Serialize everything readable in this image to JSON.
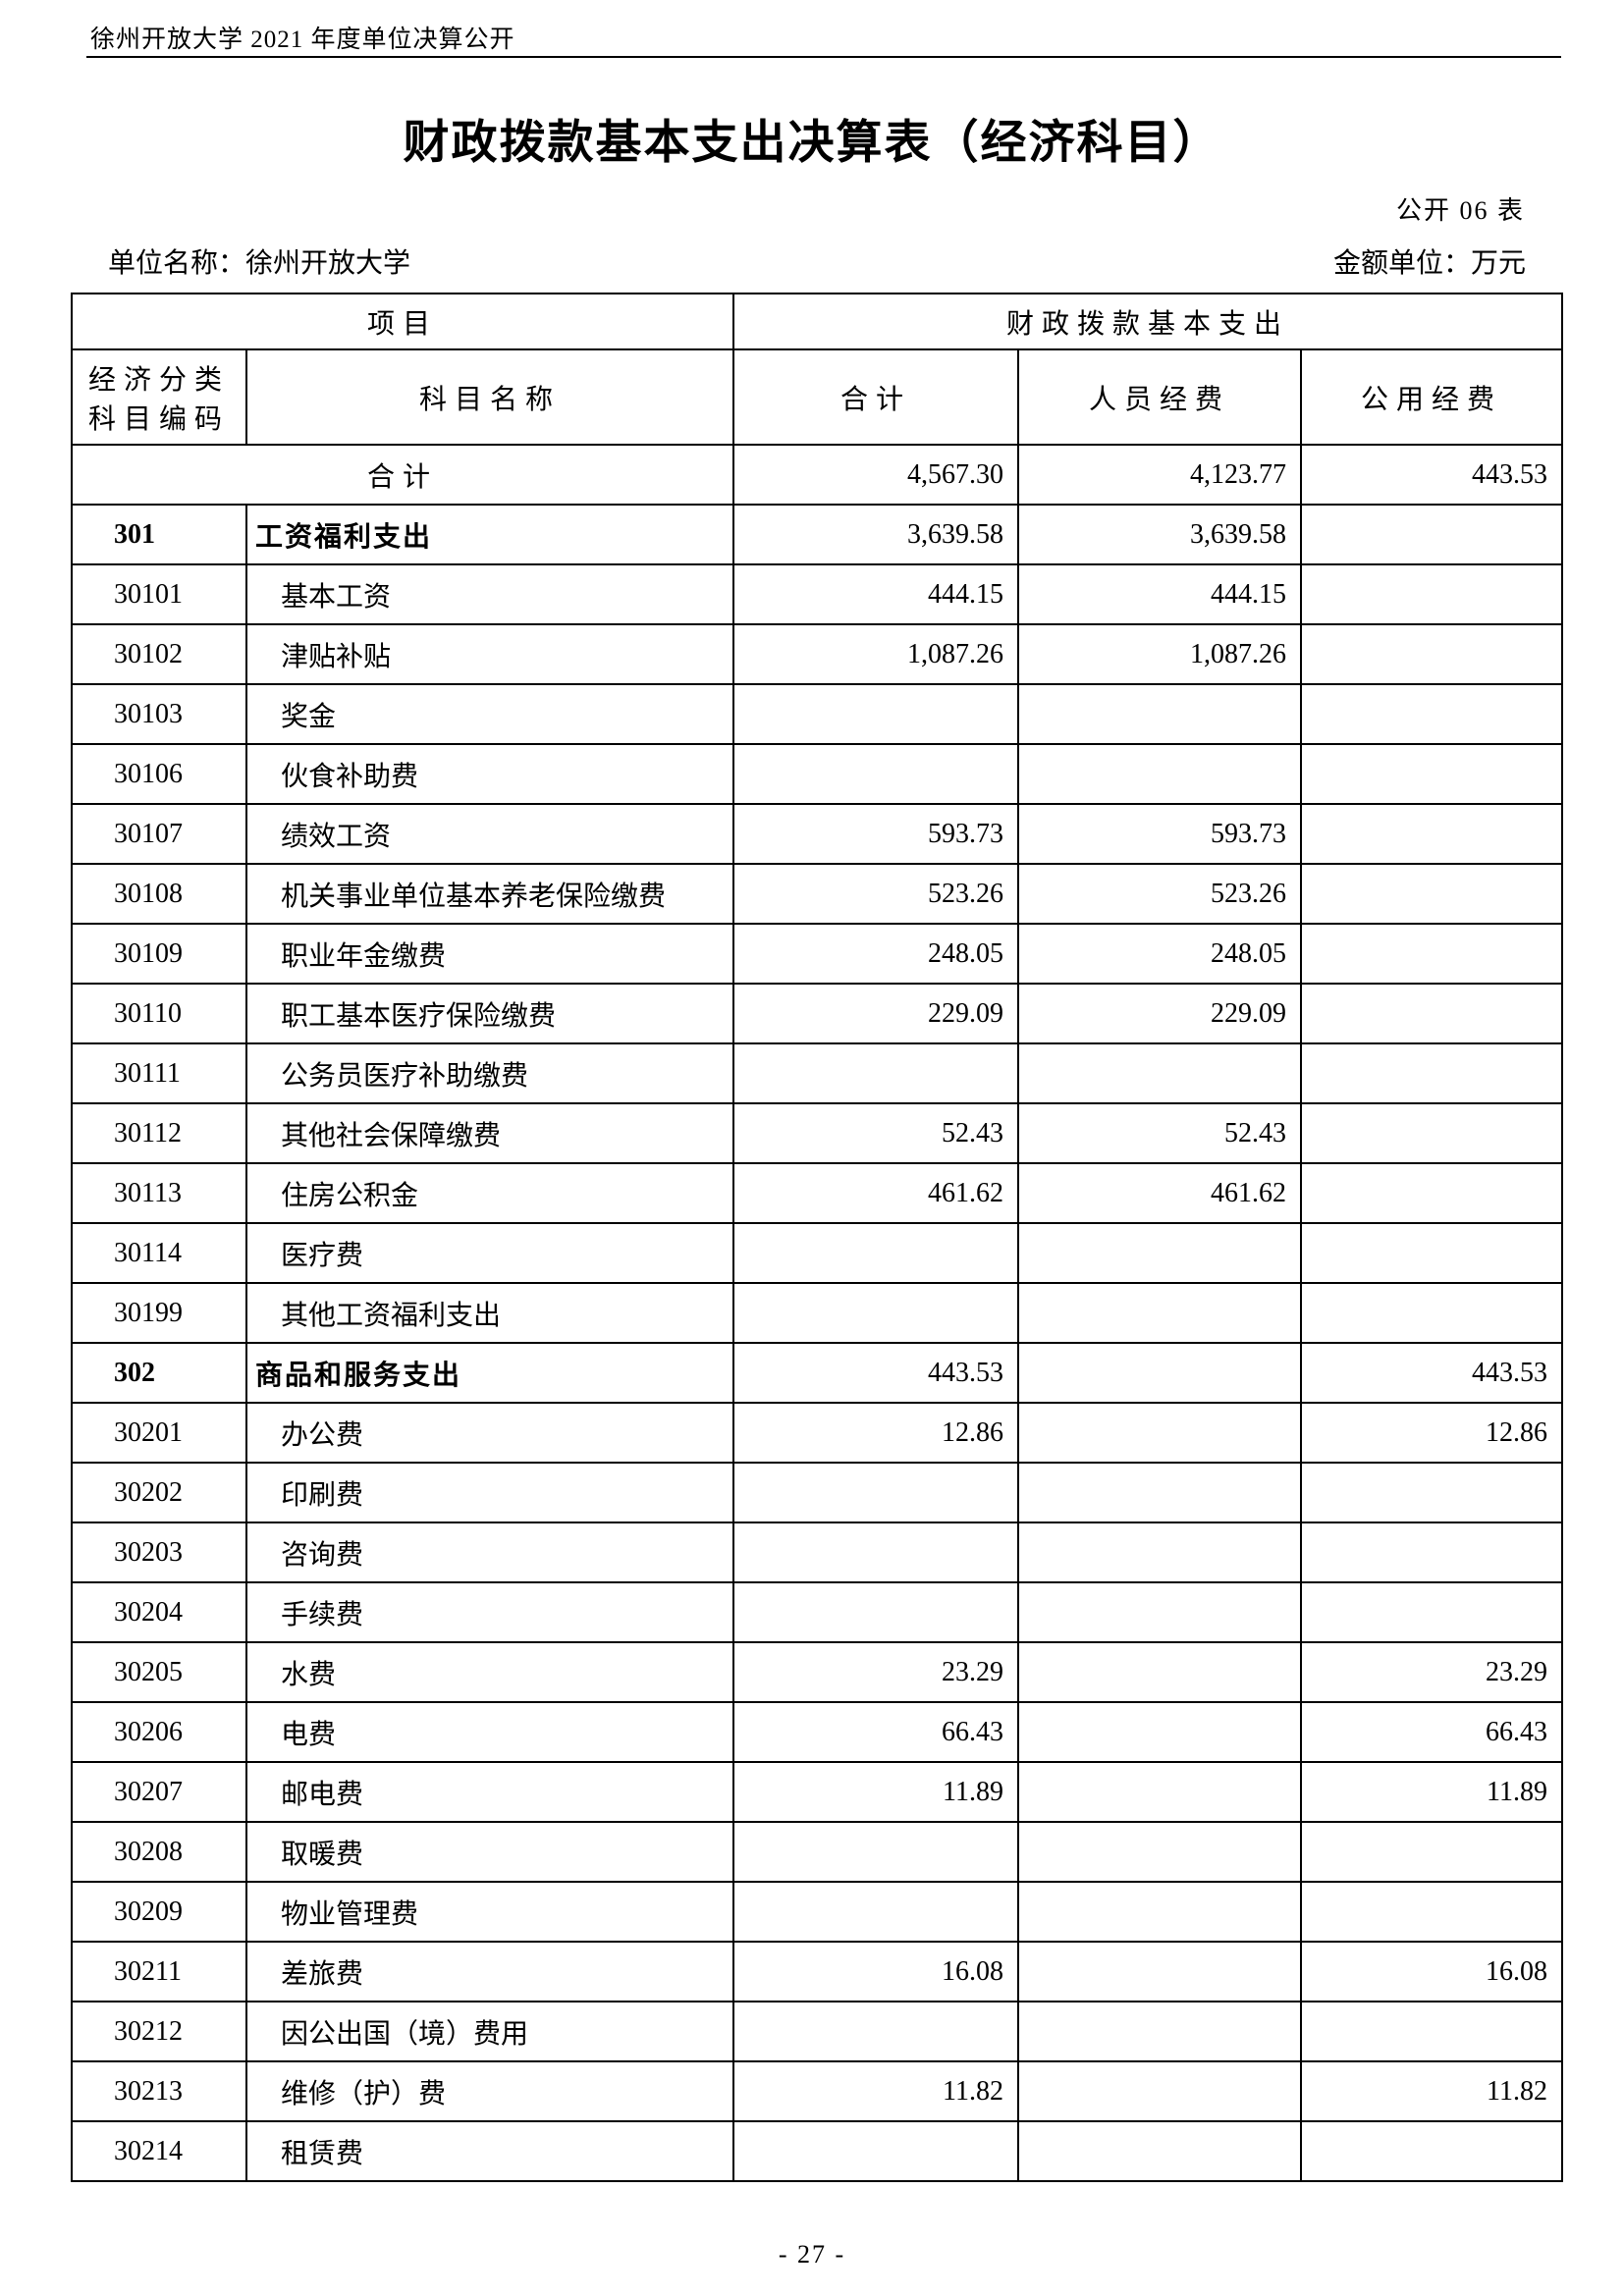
{
  "page": {
    "header_note": "徐州开放大学 2021 年度单位决算公开",
    "title": "财政拨款基本支出决算表（经济科目）",
    "table_code": "公开 06 表",
    "unit_name_label": "单位名称：徐州开放大学",
    "amount_unit_label": "金额单位：万元",
    "page_number": "- 27 -"
  },
  "table": {
    "header": {
      "project": "项目",
      "fiscal": "财政拨款基本支出",
      "code": "经济分类科目编码",
      "subject": "科目名称",
      "total": "合计",
      "personnel": "人员经费",
      "public": "公用经费"
    },
    "total_row": {
      "label": "合计",
      "total": "4,567.30",
      "personnel": "4,123.77",
      "public": "443.53"
    },
    "rows": [
      {
        "code": "301",
        "name": "工资福利支出",
        "total": "3,639.58",
        "personnel": "3,639.58",
        "public": "",
        "bold": true
      },
      {
        "code": "30101",
        "name": "基本工资",
        "total": "444.15",
        "personnel": "444.15",
        "public": "",
        "bold": false
      },
      {
        "code": "30102",
        "name": "津贴补贴",
        "total": "1,087.26",
        "personnel": "1,087.26",
        "public": "",
        "bold": false
      },
      {
        "code": "30103",
        "name": "奖金",
        "total": "",
        "personnel": "",
        "public": "",
        "bold": false
      },
      {
        "code": "30106",
        "name": "伙食补助费",
        "total": "",
        "personnel": "",
        "public": "",
        "bold": false
      },
      {
        "code": "30107",
        "name": "绩效工资",
        "total": "593.73",
        "personnel": "593.73",
        "public": "",
        "bold": false
      },
      {
        "code": "30108",
        "name": "机关事业单位基本养老保险缴费",
        "total": "523.26",
        "personnel": "523.26",
        "public": "",
        "bold": false
      },
      {
        "code": "30109",
        "name": "职业年金缴费",
        "total": "248.05",
        "personnel": "248.05",
        "public": "",
        "bold": false
      },
      {
        "code": "30110",
        "name": "职工基本医疗保险缴费",
        "total": "229.09",
        "personnel": "229.09",
        "public": "",
        "bold": false
      },
      {
        "code": "30111",
        "name": "公务员医疗补助缴费",
        "total": "",
        "personnel": "",
        "public": "",
        "bold": false
      },
      {
        "code": "30112",
        "name": "其他社会保障缴费",
        "total": "52.43",
        "personnel": "52.43",
        "public": "",
        "bold": false
      },
      {
        "code": "30113",
        "name": "住房公积金",
        "total": "461.62",
        "personnel": "461.62",
        "public": "",
        "bold": false
      },
      {
        "code": "30114",
        "name": "医疗费",
        "total": "",
        "personnel": "",
        "public": "",
        "bold": false
      },
      {
        "code": "30199",
        "name": "其他工资福利支出",
        "total": "",
        "personnel": "",
        "public": "",
        "bold": false
      },
      {
        "code": "302",
        "name": "商品和服务支出",
        "total": "443.53",
        "personnel": "",
        "public": "443.53",
        "bold": true
      },
      {
        "code": "30201",
        "name": "办公费",
        "total": "12.86",
        "personnel": "",
        "public": "12.86",
        "bold": false
      },
      {
        "code": "30202",
        "name": "印刷费",
        "total": "",
        "personnel": "",
        "public": "",
        "bold": false
      },
      {
        "code": "30203",
        "name": "咨询费",
        "total": "",
        "personnel": "",
        "public": "",
        "bold": false
      },
      {
        "code": "30204",
        "name": "手续费",
        "total": "",
        "personnel": "",
        "public": "",
        "bold": false
      },
      {
        "code": "30205",
        "name": "水费",
        "total": "23.29",
        "personnel": "",
        "public": "23.29",
        "bold": false
      },
      {
        "code": "30206",
        "name": "电费",
        "total": "66.43",
        "personnel": "",
        "public": "66.43",
        "bold": false
      },
      {
        "code": "30207",
        "name": "邮电费",
        "total": "11.89",
        "personnel": "",
        "public": "11.89",
        "bold": false
      },
      {
        "code": "30208",
        "name": "取暖费",
        "total": "",
        "personnel": "",
        "public": "",
        "bold": false
      },
      {
        "code": "30209",
        "name": "物业管理费",
        "total": "",
        "personnel": "",
        "public": "",
        "bold": false
      },
      {
        "code": "30211",
        "name": "差旅费",
        "total": "16.08",
        "personnel": "",
        "public": "16.08",
        "bold": false
      },
      {
        "code": "30212",
        "name": "因公出国（境）费用",
        "total": "",
        "personnel": "",
        "public": "",
        "bold": false
      },
      {
        "code": "30213",
        "name": "维修（护）费",
        "total": "11.82",
        "personnel": "",
        "public": "11.82",
        "bold": false
      },
      {
        "code": "30214",
        "name": "租赁费",
        "total": "",
        "personnel": "",
        "public": "",
        "bold": false
      }
    ]
  }
}
